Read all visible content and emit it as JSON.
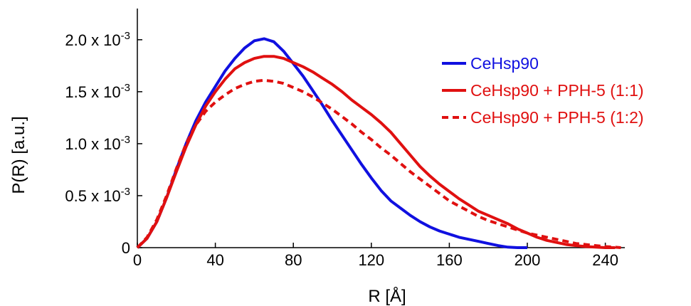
{
  "chart_data": {
    "type": "line",
    "title": "",
    "xlabel": "R [Å]",
    "ylabel": "P(R) [a.u.]",
    "xlim": [
      0,
      250
    ],
    "ylim": [
      0,
      0.0023
    ],
    "x_ticks": [
      0,
      40,
      80,
      120,
      160,
      200,
      240
    ],
    "x_tick_labels": [
      "0",
      "40",
      "80",
      "120",
      "160",
      "200",
      "240"
    ],
    "y_ticks": [
      0,
      0.0005,
      0.001,
      0.0015,
      0.002
    ],
    "y_tick_labels": [
      {
        "base": "0",
        "exp": ""
      },
      {
        "base": "0.5 x 10",
        "exp": "-3"
      },
      {
        "base": "1.0 x 10",
        "exp": "-3"
      },
      {
        "base": "1.5 x 10",
        "exp": "-3"
      },
      {
        "base": "2.0 x 10",
        "exp": "-3"
      }
    ],
    "grid": false,
    "legend_position": "top-right",
    "series": [
      {
        "name": "CeHsp90",
        "color": "#1010e0",
        "dash": "solid",
        "points": [
          [
            0,
            0
          ],
          [
            5,
            9e-05
          ],
          [
            10,
            0.00025
          ],
          [
            15,
            0.00048
          ],
          [
            20,
            0.00075
          ],
          [
            25,
            0.001
          ],
          [
            30,
            0.00122
          ],
          [
            35,
            0.0014
          ],
          [
            40,
            0.00155
          ],
          [
            45,
            0.0017
          ],
          [
            50,
            0.00182
          ],
          [
            55,
            0.00192
          ],
          [
            60,
            0.00199
          ],
          [
            65,
            0.00201
          ],
          [
            70,
            0.00198
          ],
          [
            75,
            0.00189
          ],
          [
            80,
            0.00177
          ],
          [
            85,
            0.00165
          ],
          [
            90,
            0.00151
          ],
          [
            95,
            0.00137
          ],
          [
            100,
            0.00122
          ],
          [
            105,
            0.00108
          ],
          [
            110,
            0.00094
          ],
          [
            115,
            0.0008
          ],
          [
            120,
            0.00067
          ],
          [
            125,
            0.00055
          ],
          [
            130,
            0.00045
          ],
          [
            135,
            0.00038
          ],
          [
            140,
            0.00031
          ],
          [
            145,
            0.00025
          ],
          [
            150,
            0.0002
          ],
          [
            155,
            0.00016
          ],
          [
            160,
            0.00013
          ],
          [
            165,
            0.0001
          ],
          [
            170,
            8e-05
          ],
          [
            175,
            6e-05
          ],
          [
            180,
            4e-05
          ],
          [
            185,
            2e-05
          ],
          [
            190,
            5e-06
          ],
          [
            195,
            0
          ],
          [
            200,
            0
          ]
        ]
      },
      {
        "name": "CeHsp90 + PPH-5 (1:1)",
        "color": "#e01010",
        "dash": "solid",
        "points": [
          [
            0,
            0
          ],
          [
            5,
            9e-05
          ],
          [
            10,
            0.00025
          ],
          [
            15,
            0.00048
          ],
          [
            20,
            0.00073
          ],
          [
            25,
            0.00097
          ],
          [
            30,
            0.00118
          ],
          [
            35,
            0.00136
          ],
          [
            40,
            0.0015
          ],
          [
            45,
            0.00162
          ],
          [
            50,
            0.00172
          ],
          [
            55,
            0.00178
          ],
          [
            60,
            0.00182
          ],
          [
            65,
            0.00184
          ],
          [
            70,
            0.00184
          ],
          [
            75,
            0.00182
          ],
          [
            80,
            0.00178
          ],
          [
            85,
            0.00174
          ],
          [
            90,
            0.00169
          ],
          [
            95,
            0.00163
          ],
          [
            100,
            0.00157
          ],
          [
            105,
            0.0015
          ],
          [
            110,
            0.00142
          ],
          [
            115,
            0.00135
          ],
          [
            120,
            0.00128
          ],
          [
            125,
            0.0012
          ],
          [
            130,
            0.00111
          ],
          [
            135,
            0.001
          ],
          [
            140,
            0.00089
          ],
          [
            145,
            0.00078
          ],
          [
            150,
            0.00069
          ],
          [
            155,
            0.00061
          ],
          [
            160,
            0.00054
          ],
          [
            165,
            0.00047
          ],
          [
            170,
            0.00041
          ],
          [
            175,
            0.00035
          ],
          [
            180,
            0.00031
          ],
          [
            185,
            0.00027
          ],
          [
            190,
            0.00023
          ],
          [
            195,
            0.00018
          ],
          [
            200,
            0.00014
          ],
          [
            205,
            0.0001
          ],
          [
            210,
            7e-05
          ],
          [
            215,
            5e-05
          ],
          [
            220,
            3e-05
          ],
          [
            225,
            2e-05
          ],
          [
            230,
            1e-05
          ],
          [
            235,
            5e-06
          ],
          [
            240,
            0
          ],
          [
            245,
            0
          ]
        ]
      },
      {
        "name": "CeHsp90 + PPH-5 (1:2)",
        "color": "#e01010",
        "dash": "dashed",
        "points": [
          [
            0,
            0
          ],
          [
            5,
            0.0001
          ],
          [
            10,
            0.00027
          ],
          [
            15,
            0.0005
          ],
          [
            20,
            0.00076
          ],
          [
            25,
            0.001
          ],
          [
            30,
            0.00118
          ],
          [
            35,
            0.00131
          ],
          [
            40,
            0.0014
          ],
          [
            45,
            0.00147
          ],
          [
            50,
            0.00153
          ],
          [
            55,
            0.00157
          ],
          [
            60,
            0.0016
          ],
          [
            65,
            0.00161
          ],
          [
            70,
            0.0016
          ],
          [
            75,
            0.00158
          ],
          [
            80,
            0.00154
          ],
          [
            85,
            0.0015
          ],
          [
            90,
            0.00145
          ],
          [
            95,
            0.00139
          ],
          [
            100,
            0.00133
          ],
          [
            105,
            0.00126
          ],
          [
            110,
            0.00119
          ],
          [
            115,
            0.00111
          ],
          [
            120,
            0.00104
          ],
          [
            125,
            0.00096
          ],
          [
            130,
            0.00089
          ],
          [
            135,
            0.00081
          ],
          [
            140,
            0.00073
          ],
          [
            145,
            0.00066
          ],
          [
            150,
            0.00059
          ],
          [
            155,
            0.00052
          ],
          [
            160,
            0.00045
          ],
          [
            165,
            0.0004
          ],
          [
            170,
            0.00035
          ],
          [
            175,
            0.0003
          ],
          [
            180,
            0.00026
          ],
          [
            185,
            0.00023
          ],
          [
            190,
            0.0002
          ],
          [
            195,
            0.00017
          ],
          [
            200,
            0.00014
          ],
          [
            205,
            0.00012
          ],
          [
            210,
            0.0001
          ],
          [
            215,
            8e-05
          ],
          [
            220,
            6e-05
          ],
          [
            225,
            4e-05
          ],
          [
            230,
            3e-05
          ],
          [
            235,
            2e-05
          ],
          [
            240,
            1e-05
          ],
          [
            245,
            5e-06
          ],
          [
            248,
            0
          ]
        ]
      }
    ]
  }
}
